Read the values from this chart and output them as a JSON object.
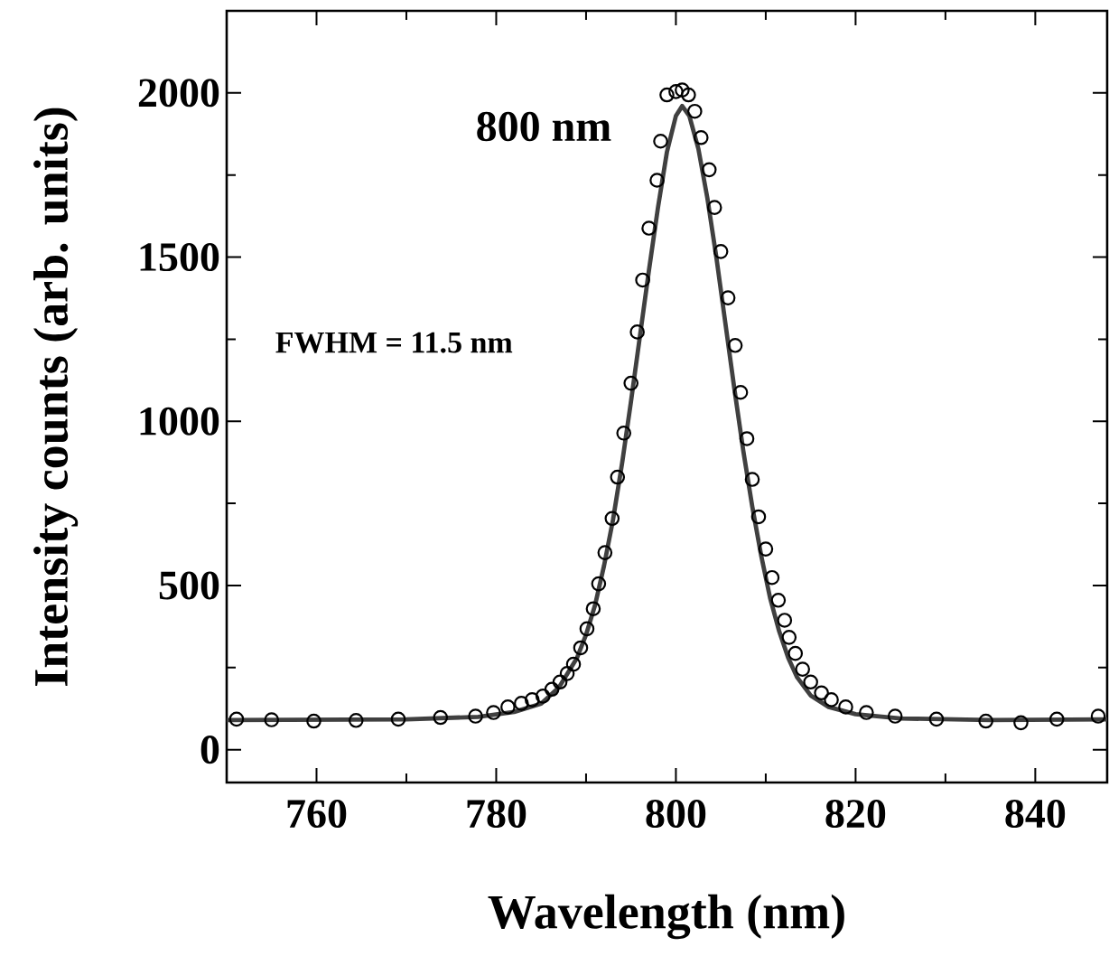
{
  "chart_data": {
    "type": "scatter",
    "xlabel": "Wavelength (nm)",
    "ylabel": "Intensity counts (arb. units)",
    "annotations": [
      "800 nm",
      "FWHM = 11.5 nm"
    ],
    "xlim": [
      750,
      848
    ],
    "ylim": [
      -100,
      2250
    ],
    "xticks": [
      760,
      780,
      800,
      820,
      840
    ],
    "yticks": [
      0,
      500,
      1000,
      1500,
      2000
    ],
    "grid": false,
    "series": [
      {
        "marker": "circle",
        "color": "#000000",
        "x": [
          751.1,
          755.0,
          759.7,
          764.4,
          769.1,
          773.8,
          777.7,
          779.7,
          781.3,
          782.8,
          784.0,
          785.2,
          786.2,
          787.1,
          787.9,
          788.6,
          789.4,
          790.1,
          790.8,
          791.4,
          792.1,
          792.9,
          793.5,
          794.2,
          795.0,
          795.7,
          796.3,
          797.0,
          797.9,
          798.3,
          799.0,
          800.0,
          800.7,
          801.4,
          802.1,
          802.8,
          803.7,
          804.3,
          805.0,
          805.8,
          806.6,
          807.2,
          807.9,
          808.5,
          809.2,
          810.0,
          810.7,
          811.4,
          812.1,
          812.6,
          813.3,
          814.1,
          815.0,
          816.2,
          817.3,
          818.9,
          821.2,
          824.4,
          829.0,
          834.5,
          838.4,
          842.4,
          847.0
        ],
        "values": [
          93,
          91,
          87,
          89,
          93,
          98,
          102,
          113,
          130,
          141,
          152,
          163,
          184,
          206,
          232,
          260,
          310,
          368,
          429,
          505,
          600,
          704,
          830,
          964,
          1116,
          1272,
          1430,
          1588,
          1734,
          1853,
          1994,
          2004,
          2009,
          1994,
          1944,
          1864,
          1766,
          1651,
          1517,
          1376,
          1231,
          1088,
          947,
          823,
          709,
          611,
          524,
          455,
          394,
          342,
          293,
          245,
          206,
          173,
          152,
          130,
          113,
          102,
          93,
          87,
          82,
          93,
          102
        ]
      },
      {
        "type": "line",
        "marker": "none",
        "line_style": "solid",
        "color": "#404040",
        "x": [
          750,
          770,
          778,
          782,
          785,
          787,
          789,
          790,
          791,
          792,
          793,
          794,
          795,
          796,
          797,
          798,
          799,
          800,
          800.7,
          801.5,
          802.5,
          803.5,
          804.5,
          805.5,
          806.5,
          807.5,
          808.5,
          809.5,
          810.5,
          811.5,
          812.5,
          813.5,
          815,
          817,
          820,
          825,
          835,
          848
        ],
        "values": [
          90,
          92,
          100,
          115,
          140,
          190,
          280,
          350,
          440,
          560,
          700,
          870,
          1060,
          1260,
          1460,
          1650,
          1820,
          1930,
          1960,
          1930,
          1830,
          1680,
          1500,
          1300,
          1100,
          910,
          740,
          590,
          460,
          360,
          280,
          220,
          165,
          130,
          108,
          95,
          90,
          92
        ]
      }
    ]
  }
}
